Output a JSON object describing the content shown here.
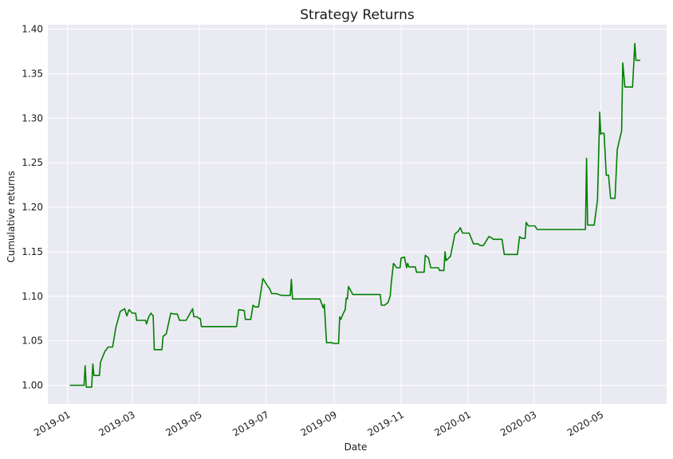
{
  "chart_data": {
    "type": "line",
    "title": "Strategy Returns",
    "xlabel": "Date",
    "ylabel": "Cumulative returns",
    "grid": true,
    "legend": "none",
    "background": "#eaeaf2",
    "series": [
      {
        "color": "#008000",
        "points": [
          [
            "2019-01-03",
            1.0
          ],
          [
            "2019-01-16",
            1.0
          ],
          [
            "2019-01-17",
            1.022
          ],
          [
            "2019-01-18",
            0.998
          ],
          [
            "2019-01-23",
            0.998
          ],
          [
            "2019-01-24",
            1.024
          ],
          [
            "2019-01-25",
            1.011
          ],
          [
            "2019-01-30",
            1.011
          ],
          [
            "2019-01-31",
            1.026
          ],
          [
            "2019-02-04",
            1.038
          ],
          [
            "2019-02-07",
            1.043
          ],
          [
            "2019-02-11",
            1.043
          ],
          [
            "2019-02-14",
            1.065
          ],
          [
            "2019-02-18",
            1.083
          ],
          [
            "2019-02-22",
            1.086
          ],
          [
            "2019-02-24",
            1.078
          ],
          [
            "2019-02-26",
            1.085
          ],
          [
            "2019-03-01",
            1.081
          ],
          [
            "2019-03-04",
            1.081
          ],
          [
            "2019-03-05",
            1.073
          ],
          [
            "2019-03-13",
            1.073
          ],
          [
            "2019-03-14",
            1.069
          ],
          [
            "2019-03-16",
            1.077
          ],
          [
            "2019-03-18",
            1.081
          ],
          [
            "2019-03-20",
            1.078
          ],
          [
            "2019-03-21",
            1.04
          ],
          [
            "2019-03-28",
            1.04
          ],
          [
            "2019-03-29",
            1.055
          ],
          [
            "2019-04-01",
            1.058
          ],
          [
            "2019-04-05",
            1.081
          ],
          [
            "2019-04-08",
            1.08
          ],
          [
            "2019-04-11",
            1.08
          ],
          [
            "2019-04-13",
            1.073
          ],
          [
            "2019-04-19",
            1.073
          ],
          [
            "2019-04-25",
            1.086
          ],
          [
            "2019-04-26",
            1.077
          ],
          [
            "2019-04-29",
            1.077
          ],
          [
            "2019-05-01",
            1.075
          ],
          [
            "2019-05-02",
            1.075
          ],
          [
            "2019-05-03",
            1.066
          ],
          [
            "2019-06-04",
            1.066
          ],
          [
            "2019-06-06",
            1.085
          ],
          [
            "2019-06-11",
            1.084
          ],
          [
            "2019-06-12",
            1.074
          ],
          [
            "2019-06-17",
            1.074
          ],
          [
            "2019-06-19",
            1.09
          ],
          [
            "2019-06-21",
            1.088
          ],
          [
            "2019-06-24",
            1.088
          ],
          [
            "2019-06-28",
            1.12
          ],
          [
            "2019-07-03",
            1.11
          ],
          [
            "2019-07-04",
            1.109
          ],
          [
            "2019-07-06",
            1.103
          ],
          [
            "2019-07-10",
            1.103
          ],
          [
            "2019-07-15",
            1.101
          ],
          [
            "2019-07-21",
            1.101
          ],
          [
            "2019-07-23",
            1.101
          ],
          [
            "2019-07-24",
            1.119
          ],
          [
            "2019-07-25",
            1.097
          ],
          [
            "2019-08-19",
            1.097
          ],
          [
            "2019-08-22",
            1.087
          ],
          [
            "2019-08-23",
            1.091
          ],
          [
            "2019-08-25",
            1.048
          ],
          [
            "2019-08-30",
            1.048
          ],
          [
            "2019-08-31",
            1.047
          ],
          [
            "2019-09-05",
            1.047
          ],
          [
            "2019-09-06",
            1.077
          ],
          [
            "2019-09-07",
            1.074
          ],
          [
            "2019-09-09",
            1.08
          ],
          [
            "2019-09-11",
            1.085
          ],
          [
            "2019-09-12",
            1.098
          ],
          [
            "2019-09-13",
            1.097
          ],
          [
            "2019-09-14",
            1.111
          ],
          [
            "2019-09-18",
            1.102
          ],
          [
            "2019-10-13",
            1.102
          ],
          [
            "2019-10-14",
            1.09
          ],
          [
            "2019-10-17",
            1.09
          ],
          [
            "2019-10-20",
            1.093
          ],
          [
            "2019-10-22",
            1.1
          ],
          [
            "2019-10-23",
            1.115
          ],
          [
            "2019-10-25",
            1.137
          ],
          [
            "2019-10-28",
            1.132
          ],
          [
            "2019-10-31",
            1.132
          ],
          [
            "2019-11-01",
            1.143
          ],
          [
            "2019-11-04",
            1.144
          ],
          [
            "2019-11-06",
            1.132
          ],
          [
            "2019-11-07",
            1.137
          ],
          [
            "2019-11-08",
            1.133
          ],
          [
            "2019-11-14",
            1.133
          ],
          [
            "2019-11-15",
            1.127
          ],
          [
            "2019-11-22",
            1.127
          ],
          [
            "2019-11-23",
            1.146
          ],
          [
            "2019-11-26",
            1.143
          ],
          [
            "2019-11-28",
            1.132
          ],
          [
            "2019-12-05",
            1.132
          ],
          [
            "2019-12-06",
            1.129
          ],
          [
            "2019-12-10",
            1.129
          ],
          [
            "2019-12-11",
            1.15
          ],
          [
            "2019-12-12",
            1.14
          ],
          [
            "2019-12-16",
            1.145
          ],
          [
            "2019-12-20",
            1.17
          ],
          [
            "2019-12-23",
            1.173
          ],
          [
            "2019-12-25",
            1.177
          ],
          [
            "2019-12-27",
            1.171
          ],
          [
            "2020-01-02",
            1.171
          ],
          [
            "2020-01-06",
            1.159
          ],
          [
            "2020-01-10",
            1.159
          ],
          [
            "2020-01-12",
            1.157
          ],
          [
            "2020-01-15",
            1.157
          ],
          [
            "2020-01-20",
            1.167
          ],
          [
            "2020-01-22",
            1.166
          ],
          [
            "2020-01-24",
            1.164
          ],
          [
            "2020-02-01",
            1.164
          ],
          [
            "2020-02-03",
            1.147
          ],
          [
            "2020-02-15",
            1.147
          ],
          [
            "2020-02-17",
            1.167
          ],
          [
            "2020-02-19",
            1.165
          ],
          [
            "2020-02-22",
            1.165
          ],
          [
            "2020-02-23",
            1.183
          ],
          [
            "2020-02-25",
            1.179
          ],
          [
            "2020-03-02",
            1.179
          ],
          [
            "2020-03-04",
            1.175
          ],
          [
            "2020-04-17",
            1.175
          ],
          [
            "2020-04-18",
            1.255
          ],
          [
            "2020-04-19",
            1.18
          ],
          [
            "2020-04-25",
            1.18
          ],
          [
            "2020-04-28",
            1.208
          ],
          [
            "2020-04-30",
            1.307
          ],
          [
            "2020-05-01",
            1.282
          ],
          [
            "2020-05-02",
            1.283
          ],
          [
            "2020-05-04",
            1.283
          ],
          [
            "2020-05-06",
            1.236
          ],
          [
            "2020-05-08",
            1.236
          ],
          [
            "2020-05-10",
            1.21
          ],
          [
            "2020-05-14",
            1.21
          ],
          [
            "2020-05-16",
            1.265
          ],
          [
            "2020-05-20",
            1.286
          ],
          [
            "2020-05-21",
            1.362
          ],
          [
            "2020-05-23",
            1.335
          ],
          [
            "2020-05-30",
            1.335
          ],
          [
            "2020-06-01",
            1.384
          ],
          [
            "2020-06-02",
            1.365
          ],
          [
            "2020-06-06",
            1.365
          ]
        ]
      }
    ],
    "x_ticks": [
      "2019-01",
      "2019-03",
      "2019-05",
      "2019-07",
      "2019-09",
      "2019-11",
      "2020-01",
      "2020-03",
      "2020-05"
    ],
    "y_ticks": [
      "1.00",
      "1.05",
      "1.10",
      "1.15",
      "1.20",
      "1.25",
      "1.30",
      "1.35",
      "1.40"
    ],
    "xlim": [
      "2018-12-14",
      "2020-06-30"
    ],
    "ylim": [
      0.979,
      1.405
    ]
  }
}
